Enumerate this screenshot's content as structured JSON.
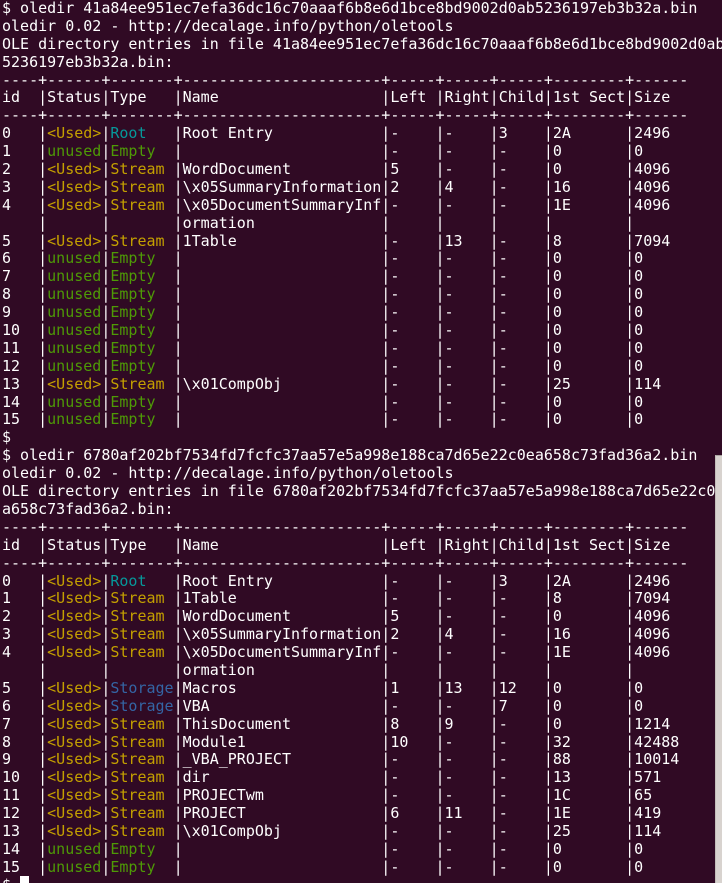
{
  "terminal": {
    "colors": {
      "bg": "#300A24",
      "fg": "#FFFFFF",
      "yellow": "#C4A000",
      "green": "#4E9A06",
      "cyan": "#06989A",
      "blue": "#3465A4",
      "cursor": "#FFFFFF",
      "scrollbar": "#D8D3CF"
    },
    "commands": [
      "oledir 41a84ee951ec7efa36dc16c70aaaf6b8e6d1bce8bd9002d0ab5236197eb3b32a.bin",
      "oledir 6780af202bf7534fd7fcfc37aa57e5a998e188ca7d65e22c0ea658c73fad36a2.bin"
    ],
    "lines": [
      [
        [
          "$ oledir 41a84ee951ec7efa36dc16c70aaaf6b8e6d1bce8bd9002d0ab5236197eb3b32a.bin",
          "fg"
        ]
      ],
      [
        [
          "oledir 0.02 - http://decalage.info/python/oletools",
          "fg"
        ]
      ],
      [
        [
          "OLE directory entries in file 41a84ee951ec7efa36dc16c70aaaf6b8e6d1bce8bd9002d0ab",
          "fg"
        ]
      ],
      [
        [
          "5236197eb3b32a.bin:",
          "fg"
        ]
      ],
      [
        [
          "----+------+-------+----------------------+-----+-----+-----+--------+------",
          "fg"
        ]
      ],
      [
        [
          "id  |Status|Type   |Name                  |Left |Right|Child|1st Sect|Size",
          "fg"
        ]
      ],
      [
        [
          "----+------+-------+----------------------+-----+-----+-----+--------+------",
          "fg"
        ]
      ],
      [
        [
          "0   |",
          "fg"
        ],
        [
          "<Used>",
          "yellow"
        ],
        [
          "|",
          "fg"
        ],
        [
          "Root   ",
          "cyan"
        ],
        [
          "|Root Entry            |-    |-    |3    |2A      |2496",
          "fg"
        ]
      ],
      [
        [
          "1   |",
          "fg"
        ],
        [
          "unused",
          "green"
        ],
        [
          "|",
          "fg"
        ],
        [
          "Empty  ",
          "green"
        ],
        [
          "|                      |-    |-    |-    |0       |0",
          "fg"
        ]
      ],
      [
        [
          "2   |",
          "fg"
        ],
        [
          "<Used>",
          "yellow"
        ],
        [
          "|",
          "fg"
        ],
        [
          "Stream ",
          "yellow"
        ],
        [
          "|WordDocument          |5    |-    |-    |0       |4096",
          "fg"
        ]
      ],
      [
        [
          "3   |",
          "fg"
        ],
        [
          "<Used>",
          "yellow"
        ],
        [
          "|",
          "fg"
        ],
        [
          "Stream ",
          "yellow"
        ],
        [
          "|\\x05SummaryInformation|2    |4    |-    |16      |4096",
          "fg"
        ]
      ],
      [
        [
          "4   |",
          "fg"
        ],
        [
          "<Used>",
          "yellow"
        ],
        [
          "|",
          "fg"
        ],
        [
          "Stream ",
          "yellow"
        ],
        [
          "|\\x05DocumentSummaryInf|-    |-    |-    |1E      |4096",
          "fg"
        ]
      ],
      [
        [
          "    |      |       |ormation              |     |     |     |        |",
          "fg"
        ]
      ],
      [
        [
          "5   |",
          "fg"
        ],
        [
          "<Used>",
          "yellow"
        ],
        [
          "|",
          "fg"
        ],
        [
          "Stream ",
          "yellow"
        ],
        [
          "|1Table                |-    |13   |-    |8       |7094",
          "fg"
        ]
      ],
      [
        [
          "6   |",
          "fg"
        ],
        [
          "unused",
          "green"
        ],
        [
          "|",
          "fg"
        ],
        [
          "Empty  ",
          "green"
        ],
        [
          "|                      |-    |-    |-    |0       |0",
          "fg"
        ]
      ],
      [
        [
          "7   |",
          "fg"
        ],
        [
          "unused",
          "green"
        ],
        [
          "|",
          "fg"
        ],
        [
          "Empty  ",
          "green"
        ],
        [
          "|                      |-    |-    |-    |0       |0",
          "fg"
        ]
      ],
      [
        [
          "8   |",
          "fg"
        ],
        [
          "unused",
          "green"
        ],
        [
          "|",
          "fg"
        ],
        [
          "Empty  ",
          "green"
        ],
        [
          "|                      |-    |-    |-    |0       |0",
          "fg"
        ]
      ],
      [
        [
          "9   |",
          "fg"
        ],
        [
          "unused",
          "green"
        ],
        [
          "|",
          "fg"
        ],
        [
          "Empty  ",
          "green"
        ],
        [
          "|                      |-    |-    |-    |0       |0",
          "fg"
        ]
      ],
      [
        [
          "10  |",
          "fg"
        ],
        [
          "unused",
          "green"
        ],
        [
          "|",
          "fg"
        ],
        [
          "Empty  ",
          "green"
        ],
        [
          "|                      |-    |-    |-    |0       |0",
          "fg"
        ]
      ],
      [
        [
          "11  |",
          "fg"
        ],
        [
          "unused",
          "green"
        ],
        [
          "|",
          "fg"
        ],
        [
          "Empty  ",
          "green"
        ],
        [
          "|                      |-    |-    |-    |0       |0",
          "fg"
        ]
      ],
      [
        [
          "12  |",
          "fg"
        ],
        [
          "unused",
          "green"
        ],
        [
          "|",
          "fg"
        ],
        [
          "Empty  ",
          "green"
        ],
        [
          "|                      |-    |-    |-    |0       |0",
          "fg"
        ]
      ],
      [
        [
          "13  |",
          "fg"
        ],
        [
          "<Used>",
          "yellow"
        ],
        [
          "|",
          "fg"
        ],
        [
          "Stream ",
          "yellow"
        ],
        [
          "|\\x01CompObj           |-    |-    |-    |25      |114",
          "fg"
        ]
      ],
      [
        [
          "14  |",
          "fg"
        ],
        [
          "unused",
          "green"
        ],
        [
          "|",
          "fg"
        ],
        [
          "Empty  ",
          "green"
        ],
        [
          "|                      |-    |-    |-    |0       |0",
          "fg"
        ]
      ],
      [
        [
          "15  |",
          "fg"
        ],
        [
          "unused",
          "green"
        ],
        [
          "|",
          "fg"
        ],
        [
          "Empty  ",
          "green"
        ],
        [
          "|                      |-    |-    |-    |0       |0",
          "fg"
        ]
      ],
      [
        [
          "$",
          "fg"
        ]
      ],
      [
        [
          "$ oledir 6780af202bf7534fd7fcfc37aa57e5a998e188ca7d65e22c0ea658c73fad36a2.bin",
          "fg"
        ]
      ],
      [
        [
          "oledir 0.02 - http://decalage.info/python/oletools",
          "fg"
        ]
      ],
      [
        [
          "OLE directory entries in file 6780af202bf7534fd7fcfc37aa57e5a998e188ca7d65e22c0e",
          "fg"
        ]
      ],
      [
        [
          "a658c73fad36a2.bin:",
          "fg"
        ]
      ],
      [
        [
          "----+------+-------+----------------------+-----+-----+-----+--------+------",
          "fg"
        ]
      ],
      [
        [
          "id  |Status|Type   |Name                  |Left |Right|Child|1st Sect|Size",
          "fg"
        ]
      ],
      [
        [
          "----+------+-------+----------------------+-----+-----+-----+--------+------",
          "fg"
        ]
      ],
      [
        [
          "0   |",
          "fg"
        ],
        [
          "<Used>",
          "yellow"
        ],
        [
          "|",
          "fg"
        ],
        [
          "Root   ",
          "cyan"
        ],
        [
          "|Root Entry            |-    |-    |3    |2A      |2496",
          "fg"
        ]
      ],
      [
        [
          "1   |",
          "fg"
        ],
        [
          "<Used>",
          "yellow"
        ],
        [
          "|",
          "fg"
        ],
        [
          "Stream ",
          "yellow"
        ],
        [
          "|1Table                |-    |-    |-    |8       |7094",
          "fg"
        ]
      ],
      [
        [
          "2   |",
          "fg"
        ],
        [
          "<Used>",
          "yellow"
        ],
        [
          "|",
          "fg"
        ],
        [
          "Stream ",
          "yellow"
        ],
        [
          "|WordDocument          |5    |-    |-    |0       |4096",
          "fg"
        ]
      ],
      [
        [
          "3   |",
          "fg"
        ],
        [
          "<Used>",
          "yellow"
        ],
        [
          "|",
          "fg"
        ],
        [
          "Stream ",
          "yellow"
        ],
        [
          "|\\x05SummaryInformation|2    |4    |-    |16      |4096",
          "fg"
        ]
      ],
      [
        [
          "4   |",
          "fg"
        ],
        [
          "<Used>",
          "yellow"
        ],
        [
          "|",
          "fg"
        ],
        [
          "Stream ",
          "yellow"
        ],
        [
          "|\\x05DocumentSummaryInf|-    |-    |-    |1E      |4096",
          "fg"
        ]
      ],
      [
        [
          "    |      |       |ormation              |     |     |     |        |",
          "fg"
        ]
      ],
      [
        [
          "5   |",
          "fg"
        ],
        [
          "<Used>",
          "yellow"
        ],
        [
          "|",
          "fg"
        ],
        [
          "Storage",
          "blue"
        ],
        [
          "|Macros                |1    |13   |12   |0       |0",
          "fg"
        ]
      ],
      [
        [
          "6   |",
          "fg"
        ],
        [
          "<Used>",
          "yellow"
        ],
        [
          "|",
          "fg"
        ],
        [
          "Storage",
          "blue"
        ],
        [
          "|VBA                   |-    |-    |7    |0       |0",
          "fg"
        ]
      ],
      [
        [
          "7   |",
          "fg"
        ],
        [
          "<Used>",
          "yellow"
        ],
        [
          "|",
          "fg"
        ],
        [
          "Stream ",
          "yellow"
        ],
        [
          "|ThisDocument          |8    |9    |-    |0       |1214",
          "fg"
        ]
      ],
      [
        [
          "8   |",
          "fg"
        ],
        [
          "<Used>",
          "yellow"
        ],
        [
          "|",
          "fg"
        ],
        [
          "Stream ",
          "yellow"
        ],
        [
          "|Module1               |10   |-    |-    |32      |42488",
          "fg"
        ]
      ],
      [
        [
          "9   |",
          "fg"
        ],
        [
          "<Used>",
          "yellow"
        ],
        [
          "|",
          "fg"
        ],
        [
          "Stream ",
          "yellow"
        ],
        [
          "|_VBA_PROJECT          |-    |-    |-    |88      |10014",
          "fg"
        ]
      ],
      [
        [
          "10  |",
          "fg"
        ],
        [
          "<Used>",
          "yellow"
        ],
        [
          "|",
          "fg"
        ],
        [
          "Stream ",
          "yellow"
        ],
        [
          "|dir                   |-    |-    |-    |13      |571",
          "fg"
        ]
      ],
      [
        [
          "11  |",
          "fg"
        ],
        [
          "<Used>",
          "yellow"
        ],
        [
          "|",
          "fg"
        ],
        [
          "Stream ",
          "yellow"
        ],
        [
          "|PROJECTwm             |-    |-    |-    |1C      |65",
          "fg"
        ]
      ],
      [
        [
          "12  |",
          "fg"
        ],
        [
          "<Used>",
          "yellow"
        ],
        [
          "|",
          "fg"
        ],
        [
          "Stream ",
          "yellow"
        ],
        [
          "|PROJECT               |6    |11   |-    |1E      |419",
          "fg"
        ]
      ],
      [
        [
          "13  |",
          "fg"
        ],
        [
          "<Used>",
          "yellow"
        ],
        [
          "|",
          "fg"
        ],
        [
          "Stream ",
          "yellow"
        ],
        [
          "|\\x01CompObj           |-    |-    |-    |25      |114",
          "fg"
        ]
      ],
      [
        [
          "14  |",
          "fg"
        ],
        [
          "unused",
          "green"
        ],
        [
          "|",
          "fg"
        ],
        [
          "Empty  ",
          "green"
        ],
        [
          "|                      |-    |-    |-    |0       |0",
          "fg"
        ]
      ],
      [
        [
          "15  |",
          "fg"
        ],
        [
          "unused",
          "green"
        ],
        [
          "|",
          "fg"
        ],
        [
          "Empty  ",
          "green"
        ],
        [
          "|                      |-    |-    |-    |0       |0",
          "fg"
        ]
      ],
      [
        [
          "$ ",
          "fg"
        ],
        [
          " ",
          "cursor"
        ]
      ]
    ]
  }
}
